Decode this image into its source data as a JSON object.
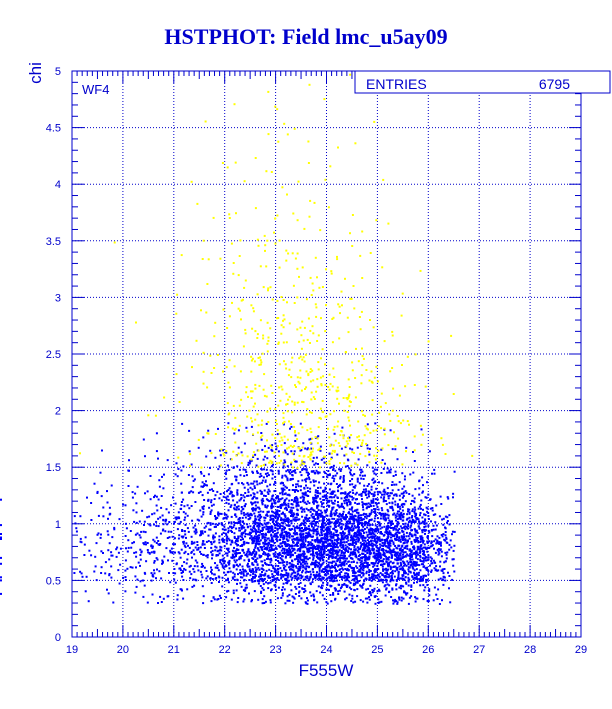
{
  "chart_data": {
    "type": "scatter",
    "title": "HSTPHOT: Field lmc_u5ay09",
    "xlabel": "F555W",
    "ylabel": "chi",
    "xlim": [
      19,
      29
    ],
    "ylim": [
      0,
      5
    ],
    "x_ticks": [
      "19",
      "20",
      "21",
      "22",
      "23",
      "24",
      "25",
      "26",
      "27",
      "28",
      "29"
    ],
    "y_ticks": [
      "0",
      "0.5",
      "1",
      "1.5",
      "2",
      "2.5",
      "3",
      "3.5",
      "4",
      "4.5",
      "5"
    ],
    "grid": true,
    "panel_label": "WF4",
    "stats_box": {
      "label": "ENTRIES",
      "value": "6795"
    },
    "series": [
      {
        "color": "#0000ff",
        "density_grid": {
          "x_bins": [
            19.0,
            19.5,
            20.0,
            20.5,
            21.0,
            21.5,
            22.0,
            22.5,
            23.0,
            23.5,
            24.0,
            24.5,
            25.0,
            25.5,
            26.0,
            26.5
          ],
          "y_bins": [
            0.3,
            0.5,
            0.7,
            0.9,
            1.1,
            1.3,
            1.5,
            1.7,
            1.9
          ],
          "counts": [
            [
              2,
              4,
              6,
              8,
              10,
              14,
              22,
              30,
              34,
              36,
              40,
              42,
              40,
              34,
              10,
              1
            ],
            [
              8,
              12,
              18,
              24,
              32,
              44,
              70,
              100,
              115,
              125,
              130,
              130,
              125,
              105,
              40,
              3
            ],
            [
              10,
              14,
              22,
              30,
              40,
              55,
              90,
              140,
              160,
              175,
              180,
              180,
              170,
              135,
              50,
              4
            ],
            [
              8,
              12,
              18,
              24,
              34,
              48,
              80,
              120,
              140,
              150,
              150,
              145,
              130,
              95,
              30,
              2
            ],
            [
              4,
              6,
              10,
              14,
              20,
              30,
              55,
              80,
              92,
              95,
              90,
              80,
              65,
              40,
              12,
              1
            ],
            [
              1,
              2,
              4,
              6,
              10,
              16,
              30,
              45,
              52,
              52,
              45,
              35,
              24,
              12,
              4,
              0
            ],
            [
              0,
              1,
              2,
              3,
              5,
              8,
              14,
              20,
              22,
              20,
              16,
              10,
              6,
              3,
              1,
              0
            ],
            [
              0,
              0,
              1,
              1,
              2,
              3,
              5,
              7,
              8,
              7,
              5,
              3,
              2,
              1,
              0,
              0
            ]
          ]
        }
      },
      {
        "color": "#ffff00",
        "density_grid": {
          "x_bins": [
            19.0,
            20.0,
            21.0,
            21.5,
            22.0,
            22.5,
            23.0,
            23.5,
            24.0,
            24.5,
            25.0,
            25.5,
            26.0,
            26.5,
            27.0
          ],
          "y_bins": [
            1.5,
            2.0,
            2.5,
            3.0,
            3.5,
            4.0,
            4.5,
            5.0
          ],
          "counts": [
            [
              1,
              2,
              4,
              10,
              20,
              32,
              42,
              44,
              40,
              30,
              18,
              8,
              3,
              1
            ],
            [
              0,
              1,
              3,
              8,
              16,
              26,
              34,
              34,
              28,
              18,
              9,
              4,
              1,
              0
            ],
            [
              0,
              1,
              2,
              6,
              11,
              18,
              22,
              20,
              14,
              8,
              4,
              2,
              1,
              0
            ],
            [
              1,
              0,
              2,
              4,
              7,
              11,
              12,
              10,
              7,
              4,
              2,
              1,
              0,
              0
            ],
            [
              0,
              0,
              1,
              2,
              4,
              6,
              6,
              5,
              3,
              2,
              1,
              0,
              0,
              0
            ],
            [
              0,
              0,
              1,
              1,
              3,
              4,
              4,
              3,
              2,
              1,
              1,
              0,
              0,
              0
            ],
            [
              0,
              0,
              0,
              1,
              1,
              2,
              2,
              2,
              1,
              1,
              0,
              0,
              0,
              0
            ]
          ]
        }
      }
    ]
  }
}
